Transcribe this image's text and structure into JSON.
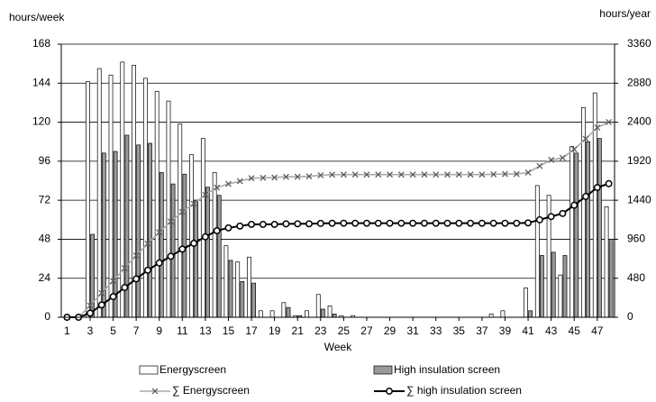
{
  "chart_data": {
    "type": "bar",
    "y_label": "hours/week",
    "y2_label": "hours/year",
    "x_label": "Week",
    "x": [
      1,
      2,
      3,
      4,
      5,
      6,
      7,
      8,
      9,
      10,
      11,
      12,
      13,
      14,
      15,
      16,
      17,
      18,
      19,
      20,
      21,
      22,
      23,
      24,
      25,
      26,
      27,
      28,
      29,
      30,
      31,
      32,
      33,
      34,
      35,
      36,
      37,
      38,
      39,
      40,
      41,
      42,
      43,
      44,
      45,
      46,
      47,
      48
    ],
    "xlim": [
      0.5,
      48.5
    ],
    "xticks": [
      1,
      3,
      5,
      7,
      9,
      11,
      13,
      15,
      17,
      19,
      21,
      23,
      25,
      27,
      29,
      31,
      33,
      35,
      37,
      39,
      41,
      43,
      45,
      47
    ],
    "ylim": [
      0,
      168
    ],
    "yticks": [
      0,
      24,
      48,
      72,
      96,
      120,
      144,
      168
    ],
    "y2lim": [
      0,
      3360
    ],
    "y2ticks": [
      0,
      480,
      960,
      1440,
      1920,
      2400,
      2880,
      3360
    ],
    "grid": true,
    "series": [
      {
        "name": "Energyscreen",
        "kind": "bar",
        "color": "#ffffff",
        "values": [
          0,
          0,
          145,
          153,
          149,
          157,
          155,
          147,
          139,
          133,
          119,
          100,
          110,
          89,
          44,
          34,
          37,
          4,
          4,
          9,
          1,
          4,
          14,
          7,
          1,
          1,
          0,
          0,
          0,
          0,
          0,
          0,
          0,
          0,
          0,
          0,
          0,
          2,
          4,
          0,
          18,
          81,
          75,
          26,
          105,
          129,
          138,
          68
        ]
      },
      {
        "name": "High insulation screen",
        "kind": "bar",
        "color": "#999999",
        "values": [
          0,
          0,
          51,
          101,
          102,
          112,
          106,
          107,
          89,
          82,
          88,
          72,
          80,
          75,
          35,
          22,
          21,
          0,
          0,
          6,
          1,
          0,
          5,
          2,
          0,
          0,
          0,
          0,
          0,
          0,
          0,
          0,
          0,
          0,
          0,
          0,
          0,
          0,
          0,
          0,
          4,
          38,
          40,
          38,
          101,
          108,
          110,
          48
        ]
      },
      {
        "name": "∑ Energyscreen",
        "kind": "line",
        "marker": "x",
        "axis": "y2",
        "color": "#aaaaaa",
        "values": [
          0,
          0,
          145,
          298,
          447,
          604,
          759,
          906,
          1045,
          1178,
          1297,
          1397,
          1507,
          1596,
          1640,
          1674,
          1711,
          1715,
          1719,
          1728,
          1729,
          1733,
          1747,
          1754,
          1755,
          1756,
          1756,
          1756,
          1756,
          1756,
          1756,
          1756,
          1756,
          1756,
          1756,
          1756,
          1756,
          1758,
          1762,
          1762,
          1780,
          1861,
          1936,
          1962,
          2067,
          2196,
          2334,
          2402
        ]
      },
      {
        "name": "∑ high insulation screen",
        "kind": "line",
        "marker": "o",
        "axis": "y2",
        "color": "#000000",
        "values": [
          0,
          0,
          51,
          152,
          254,
          366,
          472,
          579,
          668,
          750,
          838,
          910,
          990,
          1065,
          1100,
          1122,
          1143,
          1143,
          1143,
          1149,
          1150,
          1150,
          1155,
          1157,
          1157,
          1157,
          1157,
          1157,
          1157,
          1157,
          1157,
          1157,
          1157,
          1157,
          1157,
          1157,
          1157,
          1157,
          1157,
          1157,
          1161,
          1199,
          1239,
          1277,
          1378,
          1486,
          1596,
          1644
        ]
      }
    ]
  }
}
